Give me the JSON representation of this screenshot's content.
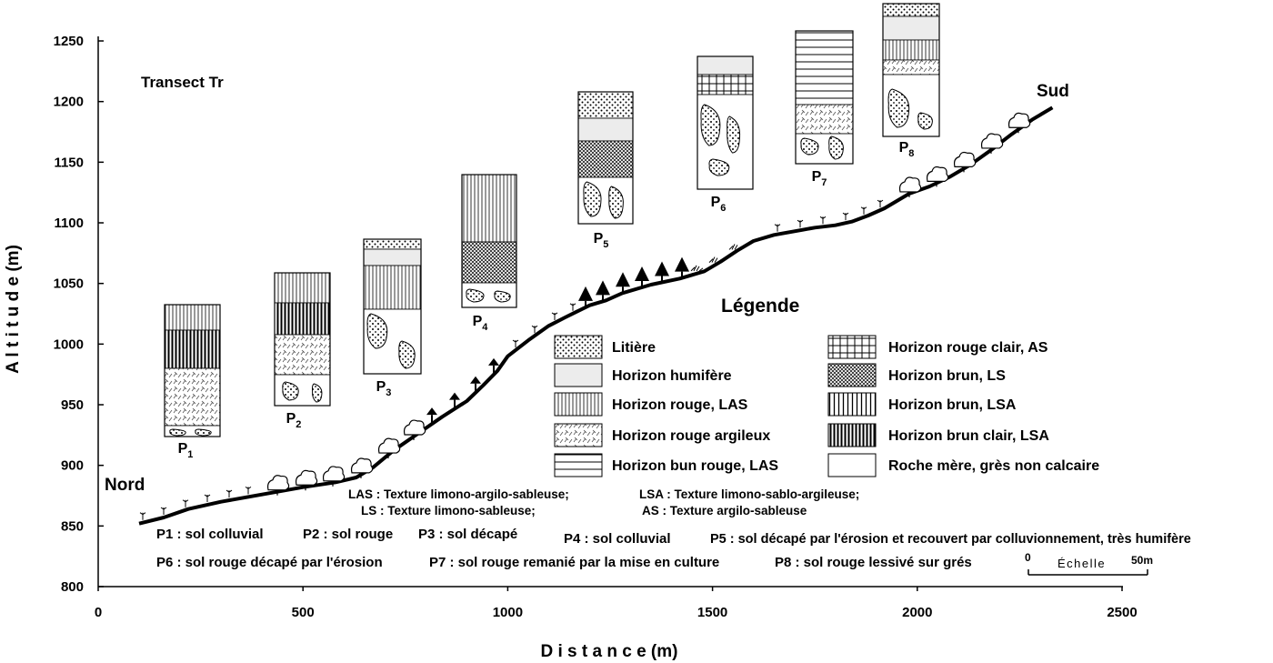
{
  "chart_data": {
    "type": "diagram",
    "title": "Transect  Tr",
    "xlabel": "D i s t a n c e   (m)",
    "ylabel": "A l t i t u d e   (m)",
    "xlim": [
      0,
      2500
    ],
    "ylim": [
      800,
      1250
    ],
    "x_ticks": [
      "0",
      "500",
      "1000",
      "1500",
      "2000",
      "2500"
    ],
    "y_ticks": [
      "800",
      "850",
      "900",
      "950",
      "1000",
      "1050",
      "1100",
      "1150",
      "1200",
      "1250"
    ],
    "x_tick_values": [
      0,
      500,
      1000,
      1500,
      2000,
      2500
    ],
    "y_tick_values": [
      800,
      850,
      900,
      950,
      1000,
      1050,
      1100,
      1150,
      1200,
      1250
    ],
    "north_label": "Nord",
    "south_label": "Sud",
    "profile": [
      [
        100,
        852
      ],
      [
        160,
        857
      ],
      [
        220,
        864
      ],
      [
        300,
        870
      ],
      [
        400,
        876
      ],
      [
        500,
        882
      ],
      [
        580,
        886
      ],
      [
        630,
        890
      ],
      [
        670,
        898
      ],
      [
        720,
        912
      ],
      [
        780,
        926
      ],
      [
        840,
        940
      ],
      [
        900,
        953
      ],
      [
        940,
        966
      ],
      [
        975,
        978
      ],
      [
        1000,
        990
      ],
      [
        1050,
        1003
      ],
      [
        1100,
        1015
      ],
      [
        1140,
        1022
      ],
      [
        1170,
        1027
      ],
      [
        1200,
        1032
      ],
      [
        1240,
        1036
      ],
      [
        1280,
        1042
      ],
      [
        1350,
        1049
      ],
      [
        1420,
        1054
      ],
      [
        1480,
        1060
      ],
      [
        1520,
        1068
      ],
      [
        1560,
        1077
      ],
      [
        1600,
        1085
      ],
      [
        1650,
        1090
      ],
      [
        1700,
        1093
      ],
      [
        1750,
        1096
      ],
      [
        1800,
        1098
      ],
      [
        1840,
        1101
      ],
      [
        1880,
        1106
      ],
      [
        1920,
        1112
      ],
      [
        1950,
        1118
      ],
      [
        1980,
        1124
      ],
      [
        2030,
        1130
      ],
      [
        2080,
        1138
      ],
      [
        2130,
        1148
      ],
      [
        2180,
        1160
      ],
      [
        2230,
        1173
      ],
      [
        2280,
        1185
      ],
      [
        2330,
        1195
      ]
    ],
    "profiles": [
      {
        "label": "P",
        "sub": "1"
      },
      {
        "label": "P",
        "sub": "2"
      },
      {
        "label": "P",
        "sub": "3"
      },
      {
        "label": "P",
        "sub": "4"
      },
      {
        "label": "P",
        "sub": "5"
      },
      {
        "label": "P",
        "sub": "6"
      },
      {
        "label": "P",
        "sub": "7"
      },
      {
        "label": "P",
        "sub": "8"
      }
    ],
    "legend_title": "Légende",
    "legend": [
      {
        "pattern": "litiere",
        "label": "Litière"
      },
      {
        "pattern": "humifere",
        "label": "Horizon humifère"
      },
      {
        "pattern": "rouge_las",
        "label": "Horizon rouge,  LAS"
      },
      {
        "pattern": "rouge_argileux",
        "label": "Horizon rouge argileux"
      },
      {
        "pattern": "bun_rouge",
        "label": "Horizon bun rouge, LAS"
      },
      {
        "pattern": "rouge_clair",
        "label": "Horizon rouge clair, AS"
      },
      {
        "pattern": "brun_ls",
        "label": "Horizon brun, LS"
      },
      {
        "pattern": "brun_lsa",
        "label": "Horizon brun, LSA"
      },
      {
        "pattern": "brun_clair",
        "label": "Horizon brun clair, LSA"
      },
      {
        "pattern": "roche",
        "label": "Roche mère, grès non calcaire"
      }
    ],
    "textures": [
      "LAS : Texture limono-argilo-sableuse;",
      "LSA : Texture limono-sablo-argileuse;",
      "LS : Texture limono-sableuse;",
      "AS : Texture argilo-sableuse"
    ],
    "soils": [
      "P1 : sol colluvial",
      "P2 : sol rouge",
      "P3 : sol décapé",
      "P4 : sol colluvial",
      "P5 : sol décapé par l'érosion et recouvert par colluvionnement, très humifère",
      "P6 : sol rouge décapé par l'érosion",
      "P7 : sol rouge remanié par la mise en culture",
      "P8 : sol rouge lessivé sur grés"
    ],
    "scale": {
      "start": "0",
      "label": "Échelle",
      "end": "50m"
    }
  }
}
